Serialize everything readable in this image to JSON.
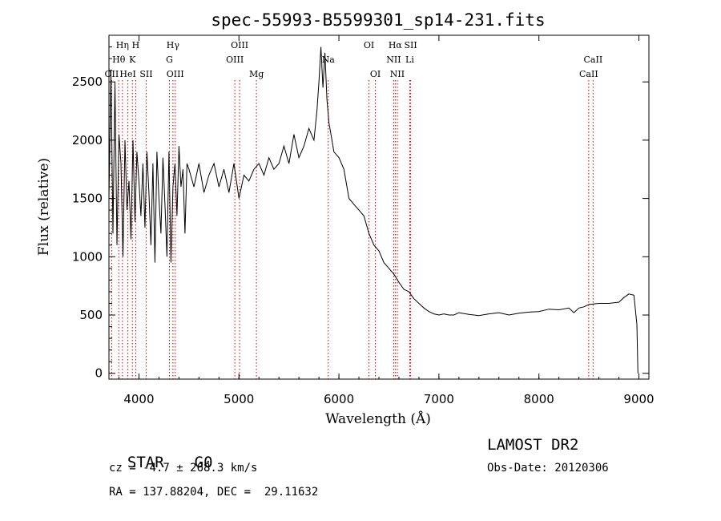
{
  "chart_data": {
    "type": "line",
    "title": "spec-55993-B5599301_sp14-231.fits",
    "xlabel": "Wavelength (Å)",
    "ylabel": "Flux (relative)",
    "xlim": [
      3700,
      9100
    ],
    "ylim": [
      -50,
      2900
    ],
    "x_ticks": [
      4000,
      5000,
      6000,
      7000,
      8000,
      9000
    ],
    "y_ticks": [
      0,
      500,
      1000,
      1500,
      2000,
      2500
    ],
    "grid": false,
    "series": [
      {
        "x": [
          3700,
          3720,
          3740,
          3760,
          3780,
          3800,
          3820,
          3840,
          3860,
          3880,
          3900,
          3920,
          3940,
          3960,
          3980,
          4000,
          4020,
          4040,
          4060,
          4080,
          4100,
          4120,
          4140,
          4160,
          4180,
          4200,
          4220,
          4240,
          4260,
          4280,
          4300,
          4320,
          4340,
          4360,
          4380,
          4400,
          4420,
          4440,
          4460,
          4480,
          4500,
          4550,
          4600,
          4650,
          4700,
          4750,
          4800,
          4850,
          4900,
          4950,
          5000,
          5050,
          5100,
          5150,
          5200,
          5250,
          5300,
          5350,
          5400,
          5450,
          5500,
          5550,
          5600,
          5650,
          5700,
          5750,
          5780,
          5800,
          5820,
          5840,
          5860,
          5880,
          5900,
          5920,
          5950,
          6000,
          6050,
          6100,
          6150,
          6200,
          6250,
          6300,
          6350,
          6400,
          6450,
          6500,
          6550,
          6600,
          6650,
          6700,
          6750,
          6800,
          6850,
          6900,
          6950,
          7000,
          7050,
          7100,
          7150,
          7200,
          7300,
          7400,
          7500,
          7600,
          7700,
          7800,
          7900,
          8000,
          8100,
          8200,
          8300,
          8350,
          8400,
          8450,
          8500,
          8600,
          8700,
          8800,
          8850,
          8900,
          8950,
          8980,
          8990
        ],
        "y": [
          1500,
          2600,
          1200,
          2500,
          1100,
          2050,
          1800,
          1000,
          2000,
          1400,
          1650,
          1150,
          2000,
          1300,
          1900,
          1650,
          1350,
          1800,
          1250,
          1900,
          1550,
          1100,
          1800,
          950,
          1900,
          1500,
          1200,
          1850,
          1450,
          1000,
          1900,
          950,
          1600,
          1800,
          1350,
          1950,
          1600,
          1750,
          1200,
          1800,
          1750,
          1600,
          1800,
          1550,
          1700,
          1800,
          1600,
          1750,
          1550,
          1800,
          1500,
          1700,
          1650,
          1750,
          1800,
          1700,
          1850,
          1750,
          1800,
          1950,
          1800,
          2050,
          1850,
          1950,
          2100,
          2000,
          2250,
          2500,
          2800,
          2450,
          2750,
          2350,
          2150,
          2050,
          1900,
          1850,
          1750,
          1500,
          1450,
          1400,
          1350,
          1200,
          1100,
          1050,
          950,
          900,
          850,
          780,
          720,
          700,
          640,
          600,
          560,
          530,
          510,
          500,
          510,
          500,
          500,
          520,
          505,
          495,
          510,
          520,
          500,
          515,
          525,
          530,
          550,
          545,
          560,
          520,
          560,
          570,
          590,
          600,
          600,
          610,
          650,
          680,
          670,
          420,
          0
        ]
      }
    ],
    "spectral_lines": [
      {
        "label": "OII",
        "x": 3727,
        "row": 3
      },
      {
        "label": "Hη",
        "x": 3835,
        "row": 1
      },
      {
        "label": "Hθ",
        "x": 3798,
        "row": 2
      },
      {
        "label": "HeI",
        "x": 3889,
        "row": 3
      },
      {
        "label": "H",
        "x": 3968,
        "row": 1
      },
      {
        "label": "K",
        "x": 3934,
        "row": 2
      },
      {
        "label": "SII",
        "x": 4072,
        "row": 3
      },
      {
        "label": "Hγ",
        "x": 4340,
        "row": 1
      },
      {
        "label": "G",
        "x": 4305,
        "row": 2
      },
      {
        "label": "OIII",
        "x": 4363,
        "row": 3
      },
      {
        "label": "OIII",
        "x": 5007,
        "row": 1
      },
      {
        "label": "OIII",
        "x": 4959,
        "row": 2
      },
      {
        "label": "Mg",
        "x": 5175,
        "row": 3
      },
      {
        "label": "Na",
        "x": 5893,
        "row": 2
      },
      {
        "label": "OI",
        "x": 6300,
        "row": 1
      },
      {
        "label": "OI",
        "x": 6364,
        "row": 3
      },
      {
        "label": "Hα",
        "x": 6563,
        "row": 1
      },
      {
        "label": "NII",
        "x": 6548,
        "row": 2
      },
      {
        "label": "NII",
        "x": 6584,
        "row": 3
      },
      {
        "label": "SII",
        "x": 6717,
        "row": 1
      },
      {
        "label": "Li",
        "x": 6708,
        "row": 2
      },
      {
        "label": "CaII",
        "x": 8542,
        "row": 2
      },
      {
        "label": "CaII",
        "x": 8498,
        "row": 3
      }
    ],
    "line_colors": {
      "spectrum": "#000000",
      "marker": "#cc0000"
    }
  },
  "info": {
    "class_label": "STAR",
    "subclass": "G0",
    "survey": "LAMOST DR2",
    "cz": "cz = -4.7 ± 268.3 km/s",
    "obs_date": "Obs-Date: 20120306",
    "coords": "RA = 137.88204, DEC =  29.11632"
  }
}
